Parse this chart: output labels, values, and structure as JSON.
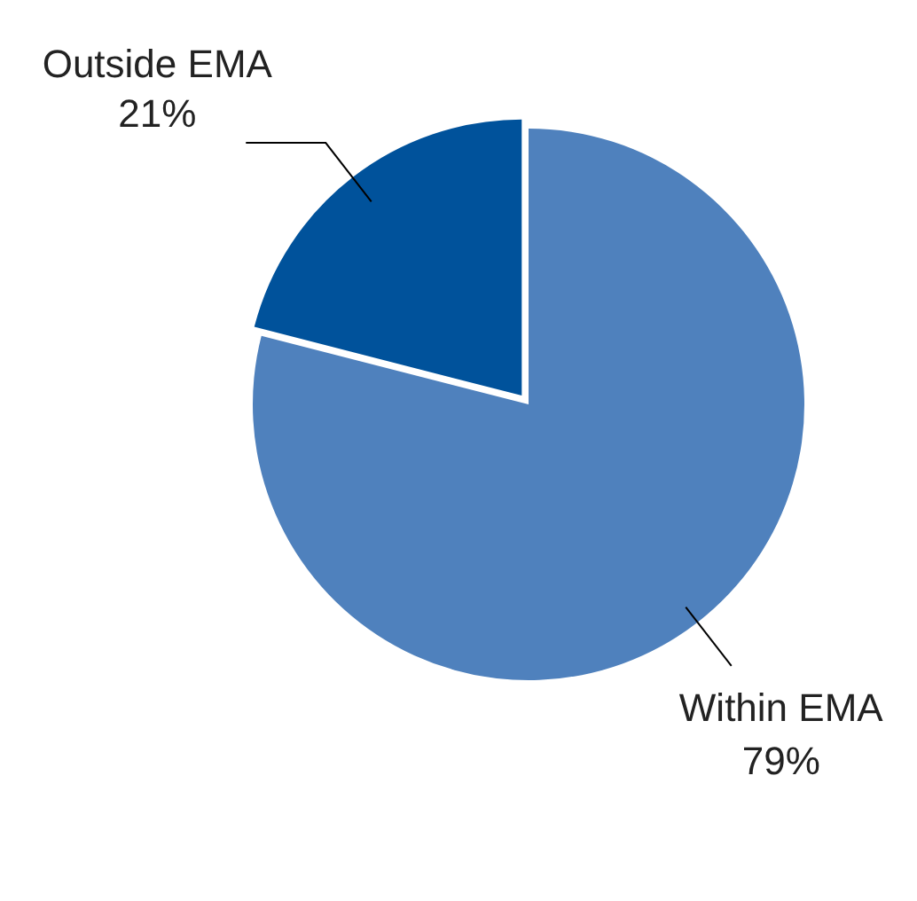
{
  "chart_data": {
    "type": "pie",
    "categories": [
      "Within EMA",
      "Outside EMA"
    ],
    "values": [
      79,
      21
    ],
    "value_labels": [
      "79%",
      "21%"
    ],
    "colors": [
      "#4f81bd",
      "#00529b"
    ],
    "legend": false
  }
}
